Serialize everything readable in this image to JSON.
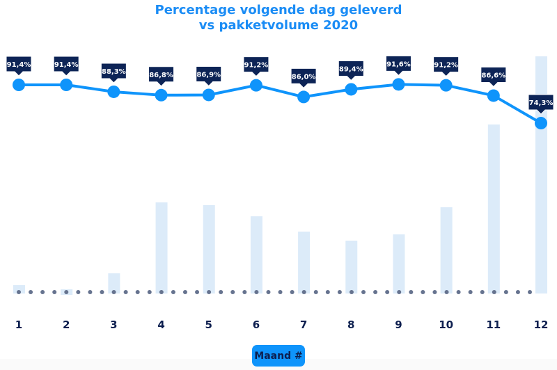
{
  "chart_data": {
    "type": "line+bar",
    "title": "Percentage volgende dag geleverd",
    "subtitle": "vs pakketvolume 2020",
    "xlabel": "Maand #",
    "categories": [
      "1",
      "2",
      "3",
      "4",
      "5",
      "6",
      "7",
      "8",
      "9",
      "10",
      "11",
      "12"
    ],
    "series": [
      {
        "type": "line",
        "values": [
          91.4,
          91.4,
          88.3,
          86.8,
          86.9,
          91.2,
          86.0,
          89.4,
          91.6,
          91.2,
          86.6,
          74.3
        ],
        "labels": [
          "91,4%",
          "91,4%",
          "88,3%",
          "86,8%",
          "86,9%",
          "91,2%",
          "86,0%",
          "89,4%",
          "91,6%",
          "91,2%",
          "86,6%",
          "74,3%"
        ]
      },
      {
        "type": "bar",
        "values": [
          12,
          -6,
          29,
          131,
          127,
          111,
          89,
          76,
          85,
          124,
          243,
          341
        ]
      }
    ],
    "grid": false,
    "colors": {
      "line": "#0f94fb",
      "bar": "#dcebf9",
      "label_bg": "#0d2456",
      "label_text": "#ffffff",
      "axis_dots": "#66738f",
      "tick_text": "#0d1f4f",
      "title": "#1a8cf5"
    }
  }
}
